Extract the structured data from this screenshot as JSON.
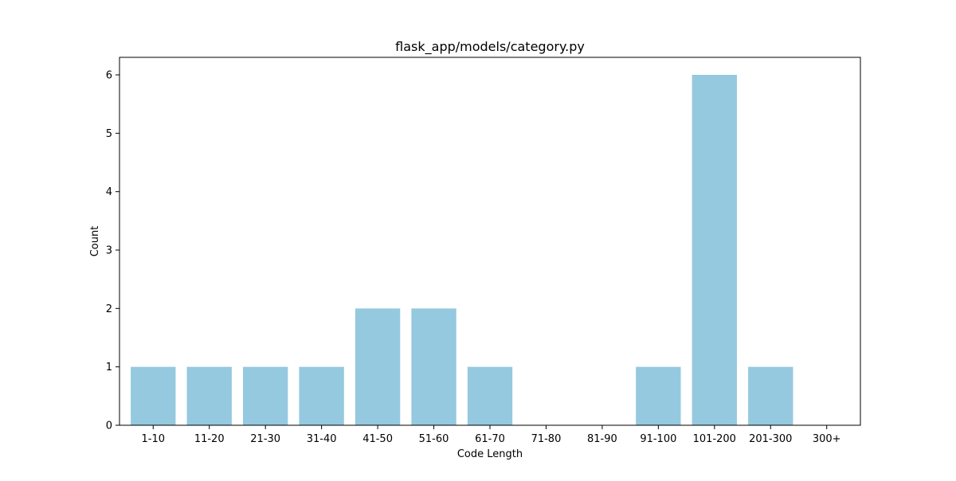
{
  "chart_data": {
    "type": "bar",
    "title": "flask_app/models/category.py",
    "xlabel": "Code Length",
    "ylabel": "Count",
    "categories": [
      "1-10",
      "11-20",
      "21-30",
      "31-40",
      "41-50",
      "51-60",
      "61-70",
      "71-80",
      "81-90",
      "91-100",
      "101-200",
      "201-300",
      "300+"
    ],
    "values": [
      1,
      1,
      1,
      1,
      2,
      2,
      1,
      0,
      0,
      1,
      6,
      1,
      0
    ],
    "ylim": [
      0,
      6.3
    ],
    "yticks": [
      0,
      1,
      2,
      3,
      4,
      5,
      6
    ],
    "grid": false,
    "colors": {
      "bar": "#95c9df",
      "axis": "#000000",
      "background": "#ffffff"
    }
  }
}
